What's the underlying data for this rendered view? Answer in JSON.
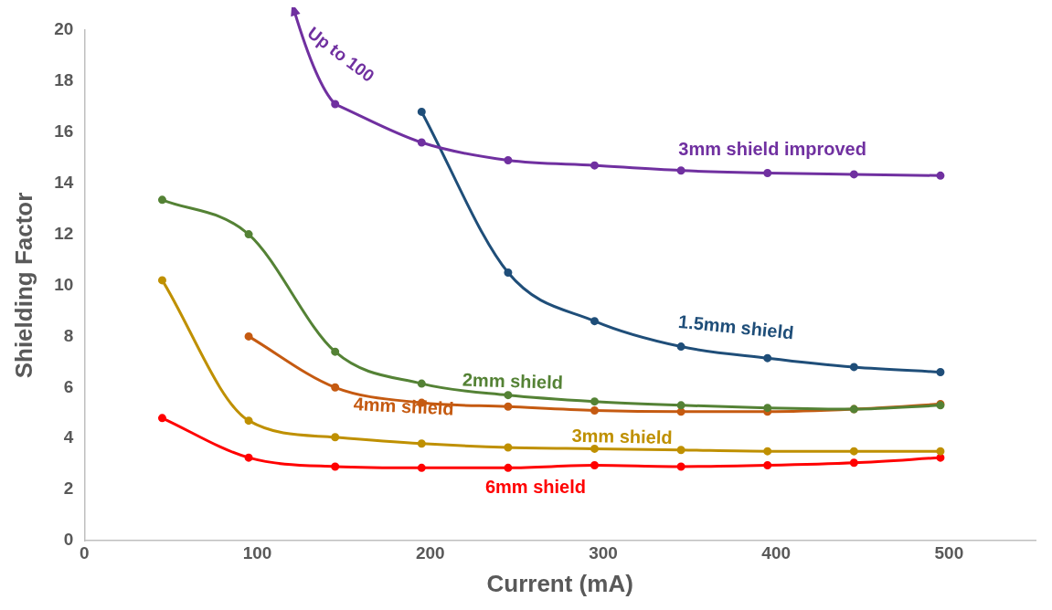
{
  "chart_data": {
    "type": "line",
    "xlabel": "Current (mA)",
    "ylabel": "Shielding Factor",
    "xlim": [
      0,
      550
    ],
    "xticks": [
      0,
      100,
      200,
      300,
      400,
      500
    ],
    "ylim": [
      0,
      20
    ],
    "yticks": [
      0,
      2,
      4,
      6,
      8,
      10,
      12,
      14,
      16,
      18,
      20
    ],
    "grid": false,
    "legend": false,
    "marker": "circle",
    "annotations": [
      "Up to 100"
    ],
    "series": [
      {
        "name": "3mm shield improved",
        "color": "#7030a0",
        "x": [
          145,
          195,
          245,
          295,
          345,
          395,
          445,
          495
        ],
        "values": [
          17.1,
          15.6,
          14.9,
          14.7,
          14.5,
          14.4,
          14.35,
          14.3
        ]
      },
      {
        "name": "1.5mm shield",
        "color": "#1f4e79",
        "x": [
          195,
          245,
          295,
          345,
          395,
          445,
          495
        ],
        "values": [
          16.8,
          10.5,
          8.6,
          7.6,
          7.15,
          6.8,
          6.6
        ]
      },
      {
        "name": "2mm shield",
        "color": "#548235",
        "x": [
          45,
          95,
          145,
          195,
          245,
          295,
          345,
          395,
          445,
          495
        ],
        "values": [
          13.35,
          12,
          7.4,
          6.15,
          5.7,
          5.45,
          5.3,
          5.2,
          5.15,
          5.3
        ]
      },
      {
        "name": "4mm shield",
        "color": "#c55a11",
        "x": [
          95,
          145,
          195,
          245,
          295,
          345,
          395,
          445,
          495
        ],
        "values": [
          8,
          6,
          5.4,
          5.25,
          5.1,
          5.05,
          5.05,
          5.15,
          5.35
        ]
      },
      {
        "name": "3mm shield",
        "color": "#bf9000",
        "x": [
          45,
          95,
          145,
          195,
          245,
          295,
          345,
          395,
          445,
          495
        ],
        "values": [
          10.2,
          4.7,
          4.05,
          3.8,
          3.65,
          3.6,
          3.55,
          3.5,
          3.5,
          3.5
        ]
      },
      {
        "name": "6mm shield",
        "color": "#ff0000",
        "x": [
          45,
          95,
          145,
          195,
          245,
          295,
          345,
          395,
          445,
          495
        ],
        "values": [
          4.8,
          3.25,
          2.9,
          2.85,
          2.85,
          2.95,
          2.9,
          2.95,
          3.05,
          3.25
        ]
      }
    ]
  }
}
